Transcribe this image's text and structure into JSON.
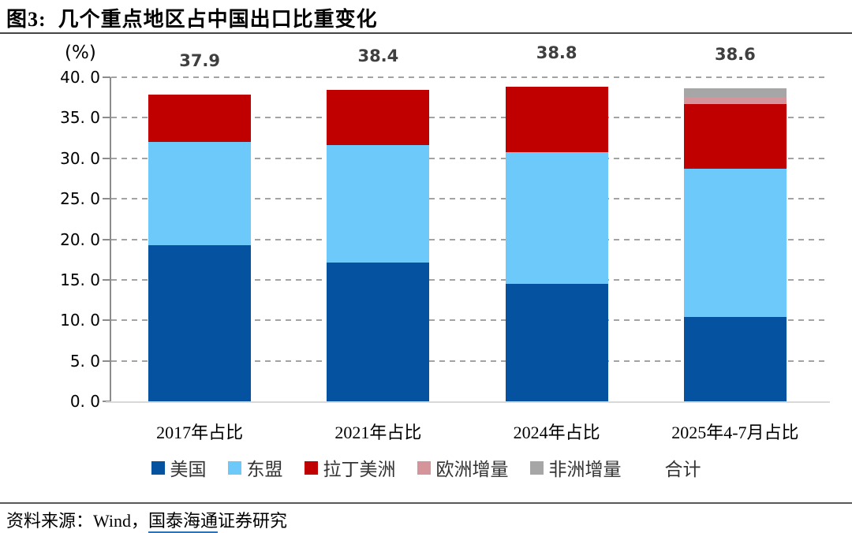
{
  "header": {
    "title": "图3:  几个重点地区占中国出口比重变化"
  },
  "chart_data": {
    "type": "bar",
    "stacked": true,
    "title": "几个重点地区占中国出口比重变化",
    "unit_label": "(%)",
    "categories": [
      "2017年占比",
      "2021年占比",
      "2024年占比",
      "2025年4-7月占比"
    ],
    "series": [
      {
        "name": "美国",
        "color": "#0452a0",
        "values": [
          19.3,
          17.1,
          14.5,
          10.4
        ]
      },
      {
        "name": "东盟",
        "color": "#6cc9fa",
        "values": [
          12.7,
          14.5,
          16.3,
          18.3
        ]
      },
      {
        "name": "拉丁美洲",
        "color": "#c00000",
        "values": [
          5.9,
          6.8,
          8.0,
          8.0
        ]
      },
      {
        "name": "欧洲增量",
        "color": "#d5939a",
        "values": [
          0,
          0,
          0,
          0.9
        ]
      },
      {
        "name": "非洲增量",
        "color": "#a6a6a6",
        "values": [
          0,
          0,
          0,
          1.0
        ]
      }
    ],
    "totals_label": "合计",
    "totals": [
      "37.9",
      "38.4",
      "38.8",
      "38.6"
    ],
    "ylim": [
      0,
      40
    ],
    "ytick_step": 5,
    "ytick_labels": [
      "0. 0",
      "5. 0",
      "10. 0",
      "15. 0",
      "20. 0",
      "25. 0",
      "30. 0",
      "35. 0",
      "40. 0"
    ],
    "grid": "dashed-horizontal",
    "legend_position": "bottom"
  },
  "footer": {
    "prefix": "资料来源：Wind，",
    "link": "国泰海通",
    "suffix": "证券研究"
  }
}
